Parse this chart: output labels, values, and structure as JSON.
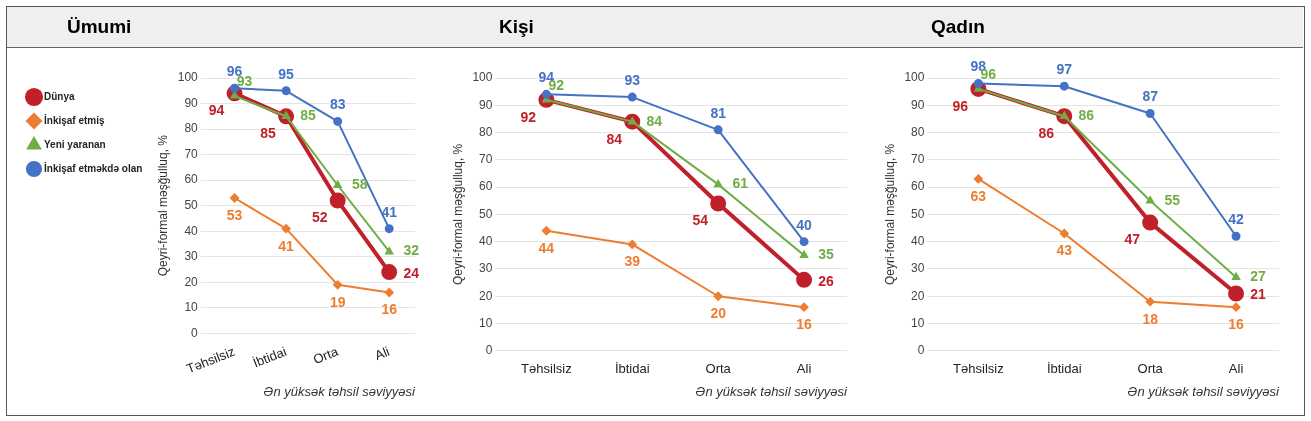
{
  "chart_data": [
    {
      "type": "line",
      "title": "Ümumi",
      "xlabel": "Ən yüksək təhsil səviyyəsi",
      "ylabel": "Qeyri-formal məşğulluq, %",
      "categories": [
        "Təhsilsiz",
        "İbtidai",
        "Orta",
        "Ali"
      ],
      "ylim": [
        0,
        100
      ],
      "yticks": [
        0,
        10,
        20,
        30,
        40,
        50,
        60,
        70,
        80,
        90,
        100
      ],
      "grid": "y",
      "legend": "left",
      "data_labels": true,
      "series": [
        {
          "name": "Dünya",
          "color": "#c0202a",
          "marker": "circle",
          "values": [
            94,
            85,
            52,
            24
          ]
        },
        {
          "name": "İnkişaf etmiş",
          "color": "#ed7d31",
          "marker": "diamond",
          "values": [
            53,
            41,
            19,
            16
          ]
        },
        {
          "name": "Yeni yaranan",
          "color": "#70ad47",
          "marker": "triangle",
          "values": [
            93,
            85,
            58,
            32
          ]
        },
        {
          "name": "İnkişaf etməkdə olan",
          "color": "#4472c4",
          "marker": "circle",
          "values": [
            96,
            95,
            83,
            41
          ]
        }
      ]
    },
    {
      "type": "line",
      "title": "Kişi",
      "xlabel": "Ən yüksək təhsil səviyyəsi",
      "ylabel": "Qeyri-formal məşğulluq, %",
      "categories": [
        "Təhsilsiz",
        "İbtidai",
        "Orta",
        "Ali"
      ],
      "ylim": [
        0,
        100
      ],
      "yticks": [
        0,
        10,
        20,
        30,
        40,
        50,
        60,
        70,
        80,
        90,
        100
      ],
      "grid": "y",
      "data_labels": true,
      "series": [
        {
          "color": "#c0202a",
          "marker": "circle",
          "values": [
            92,
            84,
            54,
            26
          ]
        },
        {
          "color": "#ed7d31",
          "marker": "diamond",
          "values": [
            44,
            39,
            20,
            16
          ]
        },
        {
          "color": "#70ad47",
          "marker": "triangle",
          "values": [
            92,
            84,
            61,
            35
          ]
        },
        {
          "color": "#4472c4",
          "marker": "circle",
          "values": [
            94,
            93,
            81,
            40
          ]
        }
      ]
    },
    {
      "type": "line",
      "title": "Qadın",
      "xlabel": "Ən yüksək təhsil səviyyəsi",
      "ylabel": "Qeyri-formal məşğulluq, %",
      "categories": [
        "Təhsilsiz",
        "İbtidai",
        "Orta",
        "Ali"
      ],
      "ylim": [
        0,
        100
      ],
      "yticks": [
        0,
        10,
        20,
        30,
        40,
        50,
        60,
        70,
        80,
        90,
        100
      ],
      "grid": "y",
      "data_labels": true,
      "series": [
        {
          "color": "#c0202a",
          "marker": "circle",
          "values": [
            96,
            86,
            47,
            21
          ]
        },
        {
          "color": "#ed7d31",
          "marker": "diamond",
          "values": [
            63,
            43,
            18,
            16
          ]
        },
        {
          "color": "#70ad47",
          "marker": "triangle",
          "values": [
            96,
            86,
            55,
            27
          ]
        },
        {
          "color": "#4472c4",
          "marker": "circle",
          "values": [
            98,
            97,
            87,
            42
          ]
        }
      ]
    }
  ]
}
